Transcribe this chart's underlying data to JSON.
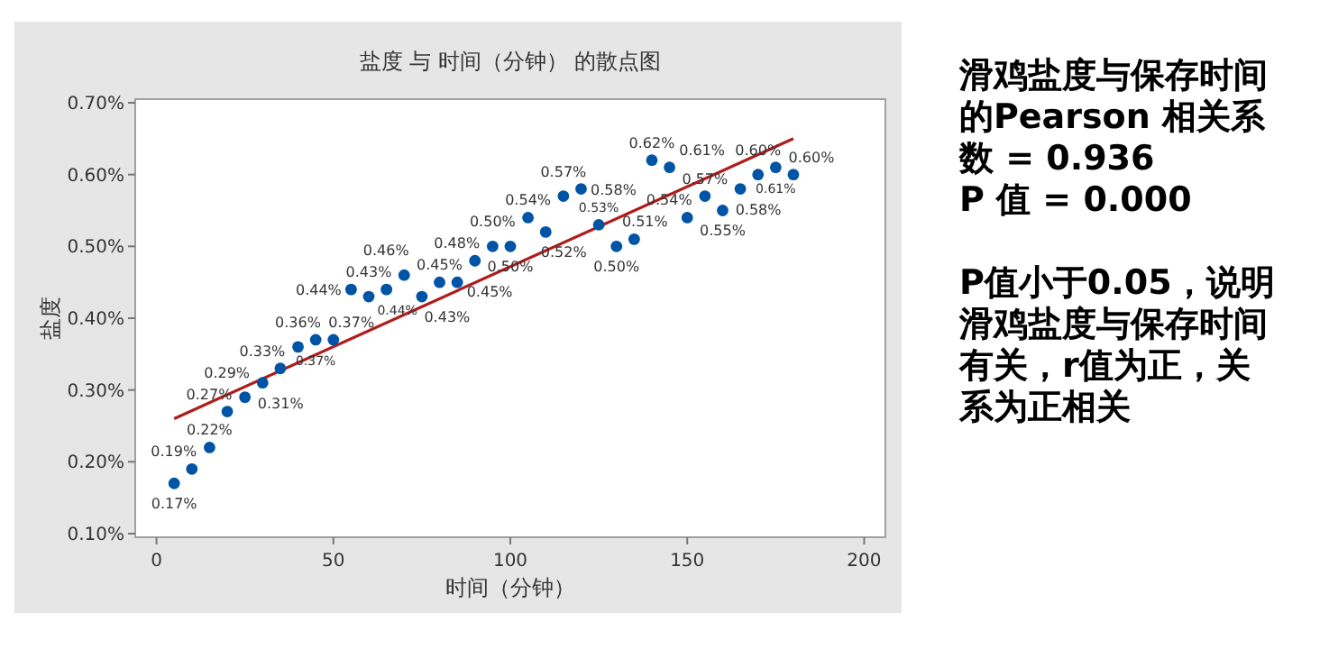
{
  "chart_data": [
    {
      "type": "scatter",
      "title": "盐度 与 时间（分钟） 的散点图",
      "xlabel": "时间（分钟）",
      "ylabel": "盐度",
      "xlim": [
        -6,
        206
      ],
      "xticks": [
        0,
        50,
        100,
        150,
        200
      ],
      "ylim": [
        0.095,
        0.705
      ],
      "yticks": [
        {
          "value": 0.1,
          "label": "0.10%"
        },
        {
          "value": 0.2,
          "label": "0.20%"
        },
        {
          "value": 0.3,
          "label": "0.30%"
        },
        {
          "value": 0.4,
          "label": "0.40%"
        },
        {
          "value": 0.5,
          "label": "0.50%"
        },
        {
          "value": 0.6,
          "label": "0.60%"
        },
        {
          "value": 0.7,
          "label": "0.70%"
        }
      ],
      "grid": false,
      "marker": "circle",
      "series": [
        {
          "type": "scatter",
          "color": "#0054a6",
          "x": [
            5,
            10,
            15,
            20,
            25,
            30,
            35,
            40,
            45,
            50,
            55,
            60,
            65,
            70,
            75,
            80,
            85,
            90,
            95,
            100,
            105,
            110,
            115,
            120,
            125,
            130,
            135,
            140,
            145,
            150,
            155,
            160,
            165,
            170,
            175,
            180
          ],
          "values": [
            0.17,
            0.19,
            0.22,
            0.27,
            0.29,
            0.31,
            0.33,
            0.36,
            0.37,
            0.37,
            0.44,
            0.43,
            0.44,
            0.46,
            0.43,
            0.45,
            0.45,
            0.48,
            0.5,
            0.5,
            0.54,
            0.52,
            0.57,
            0.58,
            0.53,
            0.5,
            0.51,
            0.62,
            0.61,
            0.54,
            0.57,
            0.55,
            0.58,
            0.6,
            0.61,
            0.6
          ],
          "value_labels": [
            "0.17%",
            "0.19%",
            "0.22%",
            "0.27%",
            "0.29%",
            "0.31%",
            "0.33%",
            "0.36%",
            "0.37%",
            "0.37%",
            "0.44%",
            "0.43%",
            "0.44%",
            "0.46%",
            "0.43%",
            "0.45%",
            "0.45%",
            "0.48%",
            "0.50%",
            "0.50%",
            "0.54%",
            "0.52%",
            "0.57%",
            "0.58%",
            "0.53%",
            "0.50%",
            "0.51%",
            "0.62%",
            "0.61%",
            "0.54%",
            "0.57%",
            "0.55%",
            "0.58%",
            "0.60%",
            "0.61%",
            "0.60%"
          ]
        },
        {
          "type": "line",
          "color": "#b01c1c",
          "marker": "none",
          "x": [
            5,
            180
          ],
          "values": [
            0.26,
            0.65
          ]
        }
      ]
    },
    {
      "type": "other",
      "annotations": [
        "滑鸡盐度与保存时间的Pearson 相关系数 = 0.936",
        "P 值 = 0.000",
        "P值小于0.05，说明滑鸡盐度与保存时间有关，r值为正，关系为正相关"
      ]
    }
  ]
}
